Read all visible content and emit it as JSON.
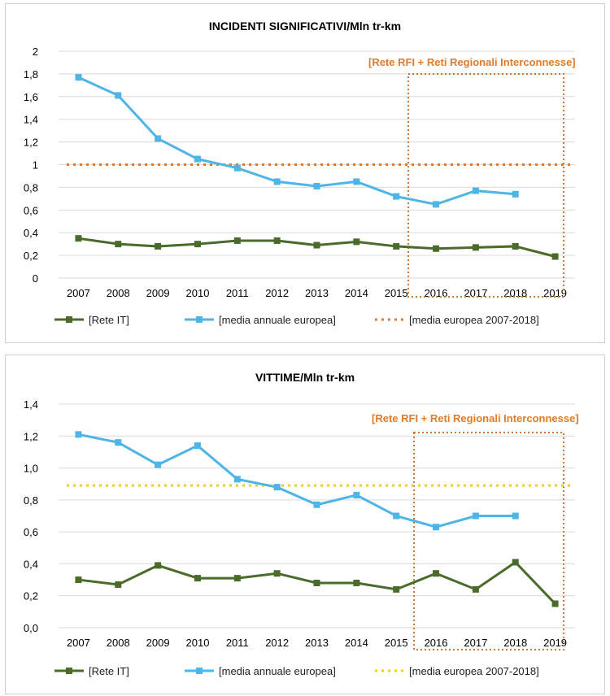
{
  "colors": {
    "rete_it": "#4a6b2a",
    "media_annuale": "#4fb4e6",
    "media_ref_1": "#e07b2a",
    "media_ref_2": "#e8d020",
    "highlight": "#c87a3a"
  },
  "chart_data": [
    {
      "type": "line",
      "title": "INCIDENTI SIGNIFICATIVI/Mln tr-km",
      "categories": [
        "2007",
        "2008",
        "2009",
        "2010",
        "2011",
        "2012",
        "2013",
        "2014",
        "2015",
        "2016",
        "2017",
        "2018",
        "2019"
      ],
      "ylim": [
        0,
        2
      ],
      "yticks": [
        "0",
        "0,2",
        "0,4",
        "0,6",
        "0,8",
        "1",
        "1,2",
        "1,4",
        "1,6",
        "1,8",
        "2"
      ],
      "series": [
        {
          "name": "[Rete IT]",
          "values": [
            0.35,
            0.3,
            0.28,
            0.3,
            0.33,
            0.33,
            0.29,
            0.32,
            0.28,
            0.26,
            0.27,
            0.28,
            0.19
          ]
        },
        {
          "name": "[media annuale europea]",
          "values": [
            1.77,
            1.61,
            1.23,
            1.05,
            0.97,
            0.85,
            0.81,
            0.85,
            0.72,
            0.65,
            0.77,
            0.74,
            null
          ]
        },
        {
          "name": "[media europea 2007-2018]",
          "values": [
            1.0,
            1.0,
            1.0,
            1.0,
            1.0,
            1.0,
            1.0,
            1.0,
            1.0,
            1.0,
            1.0,
            1.0,
            1.0
          ]
        }
      ],
      "annotation": "[Rete RFI + Reti Regionali Interconnesse]",
      "highlight_range": [
        "2015",
        "2019"
      ],
      "legend": "bottom"
    },
    {
      "type": "line",
      "title": "VITTIME/Mln tr-km",
      "categories": [
        "2007",
        "2008",
        "2009",
        "2010",
        "2011",
        "2012",
        "2013",
        "2014",
        "2015",
        "2016",
        "2017",
        "2018",
        "2019"
      ],
      "ylim": [
        0,
        1.4
      ],
      "yticks": [
        "0,0",
        "0,2",
        "0,4",
        "0,6",
        "0,8",
        "1,0",
        "1,2",
        "1,4"
      ],
      "series": [
        {
          "name": "[Rete IT]",
          "values": [
            0.3,
            0.27,
            0.39,
            0.31,
            0.31,
            0.34,
            0.28,
            0.28,
            0.24,
            0.34,
            0.24,
            0.41,
            0.15
          ]
        },
        {
          "name": "[media annuale europea]",
          "values": [
            1.21,
            1.16,
            1.02,
            1.14,
            0.93,
            0.88,
            0.77,
            0.83,
            0.7,
            0.63,
            0.7,
            0.7,
            null
          ]
        },
        {
          "name": "[media europea 2007-2018]",
          "values": [
            0.89,
            0.89,
            0.89,
            0.89,
            0.89,
            0.89,
            0.89,
            0.89,
            0.89,
            0.89,
            0.89,
            0.89,
            0.89
          ]
        }
      ],
      "annotation": "[Rete RFI + Reti Regionali Interconnesse]",
      "highlight_range": [
        "2016",
        "2019"
      ],
      "legend": "bottom"
    }
  ]
}
